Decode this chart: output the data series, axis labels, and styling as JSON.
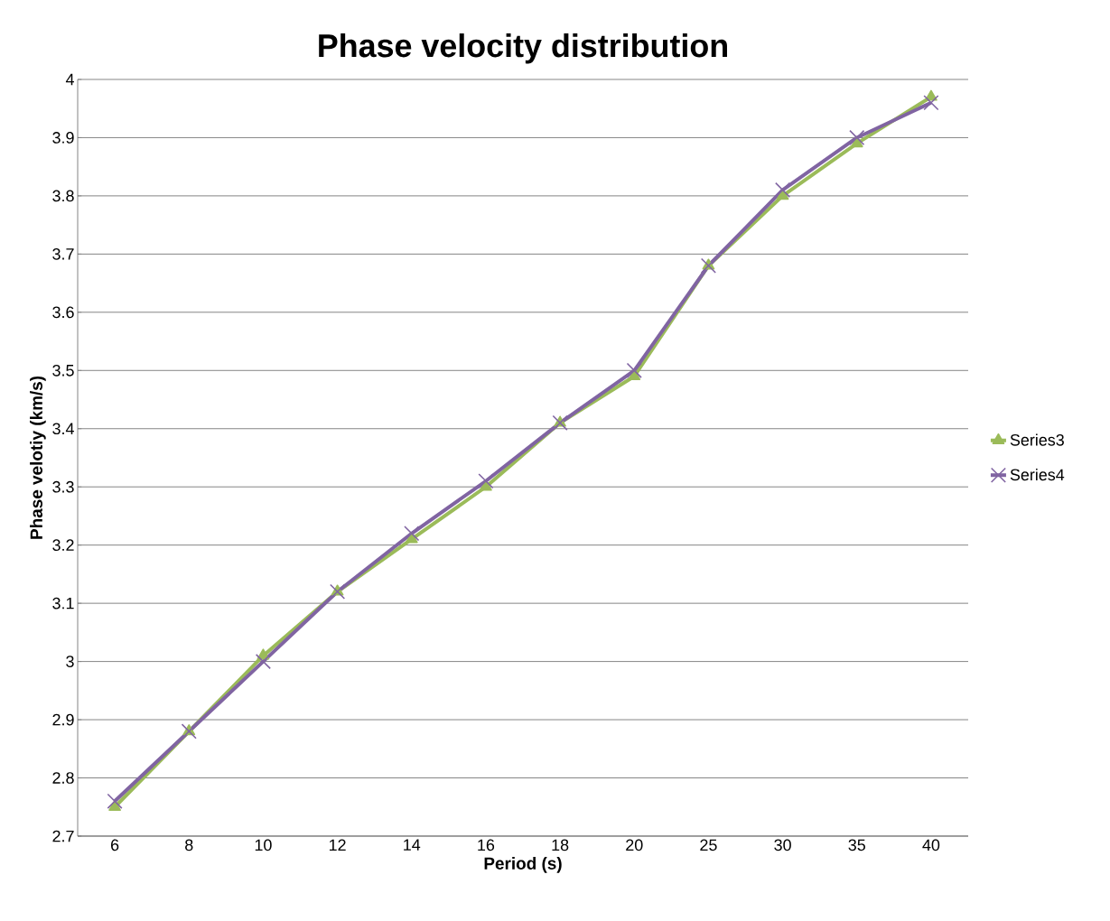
{
  "chart_data": {
    "type": "line",
    "title": "Phase velocity distribution",
    "xlabel": "Period (s)",
    "ylabel": "Phase velotiy (km/s)",
    "categories": [
      "6",
      "8",
      "10",
      "12",
      "14",
      "16",
      "18",
      "20",
      "25",
      "30",
      "35",
      "40"
    ],
    "series": [
      {
        "name": "Series3",
        "color": "#9bbb59",
        "marker": "triangle",
        "values": [
          2.75,
          2.88,
          3.01,
          3.12,
          3.21,
          3.3,
          3.41,
          3.49,
          3.68,
          3.8,
          3.89,
          3.97
        ]
      },
      {
        "name": "Series4",
        "color": "#8064a2",
        "marker": "cross",
        "values": [
          2.76,
          2.88,
          3.0,
          3.12,
          3.22,
          3.31,
          3.41,
          3.5,
          3.68,
          3.81,
          3.9,
          3.96
        ]
      }
    ],
    "ylim": [
      2.7,
      4
    ],
    "yticks": [
      2.7,
      2.8,
      2.9,
      3,
      3.1,
      3.2,
      3.3,
      3.4,
      3.5,
      3.6,
      3.7,
      3.8,
      3.9,
      4
    ],
    "grid": "y",
    "legend": "right",
    "line_style": "solid"
  }
}
